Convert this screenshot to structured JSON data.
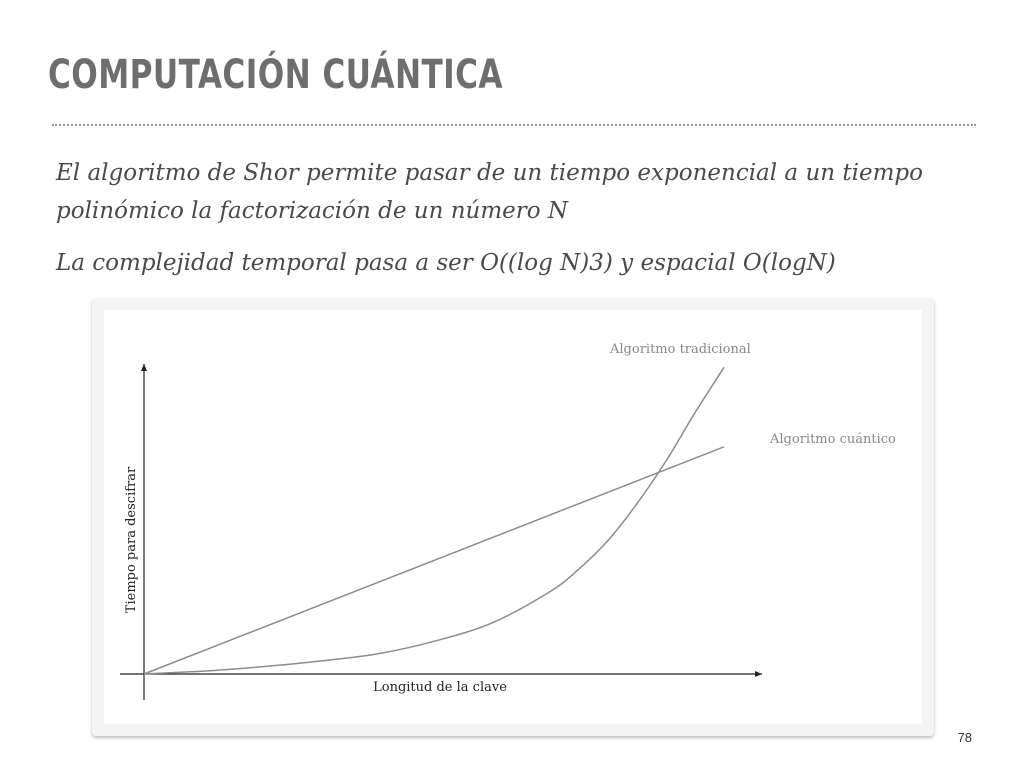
{
  "slide": {
    "title": "COMPUTACIÓN CUÁNTICA",
    "bullets": [
      "El algoritmo de Shor permite pasar de un tiempo exponencial a un tiempo polinómico la factorización de un número N",
      "La complejidad temporal pasa a ser O((log N)3) y espacial O(logN)"
    ],
    "page_number": "78"
  },
  "chart_data": {
    "type": "line",
    "title": "",
    "xlabel": "Longitud de la clave",
    "ylabel": "Tiempo para descifrar",
    "xlim": [
      0,
      1
    ],
    "ylim": [
      0,
      1
    ],
    "grid": false,
    "legend": "inline",
    "series": [
      {
        "name": "Algoritmo tradicional",
        "x": [
          0,
          0.1,
          0.2,
          0.3,
          0.4,
          0.5,
          0.6,
          0.7,
          0.75,
          0.8,
          0.85,
          0.9,
          0.95,
          1.0
        ],
        "y": [
          0,
          0.01,
          0.025,
          0.045,
          0.07,
          0.115,
          0.18,
          0.29,
          0.37,
          0.47,
          0.6,
          0.75,
          0.92,
          1.08
        ]
      },
      {
        "name": "Algoritmo cuántico",
        "x": [
          0,
          1.0
        ],
        "y": [
          0,
          0.8
        ]
      }
    ],
    "colors": {
      "line": "#8c8c8c",
      "axis": "#222222"
    }
  }
}
